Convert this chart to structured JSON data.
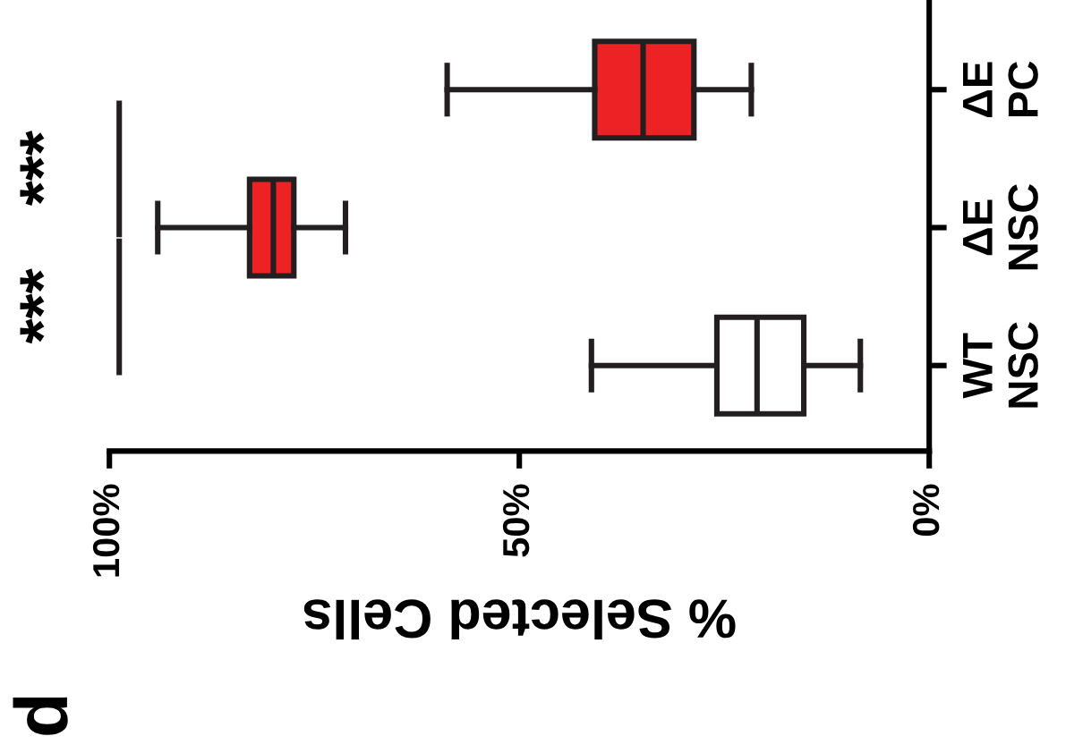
{
  "chart_data": {
    "type": "box",
    "orientation": "horizontal",
    "xlabel": "% Selected Cells",
    "categories": [
      "ΔE\nPC",
      "ΔE\nNSC",
      "WT\nNSC"
    ],
    "boxes": [
      {
        "low": 21.7,
        "q1": 28.7,
        "median": 34.9,
        "q3": 40.8,
        "high": 58.8
      },
      {
        "low": 71.2,
        "q1": 77.5,
        "median": 80.0,
        "q3": 82.9,
        "high": 94.1
      },
      {
        "low": 8.4,
        "q1": 15.3,
        "median": 21.0,
        "q3": 25.9,
        "high": 41.2
      }
    ],
    "colors": [
      "#ed2224",
      "#ed2224",
      "#ffffff"
    ],
    "xlim": [
      100,
      0
    ],
    "xticks": [
      {
        "value": 100,
        "label": "100%"
      },
      {
        "value": 50,
        "label": "50%"
      },
      {
        "value": 0,
        "label": "0%"
      }
    ],
    "annotations": [
      "***",
      "***",
      "d"
    ],
    "grid": false
  }
}
